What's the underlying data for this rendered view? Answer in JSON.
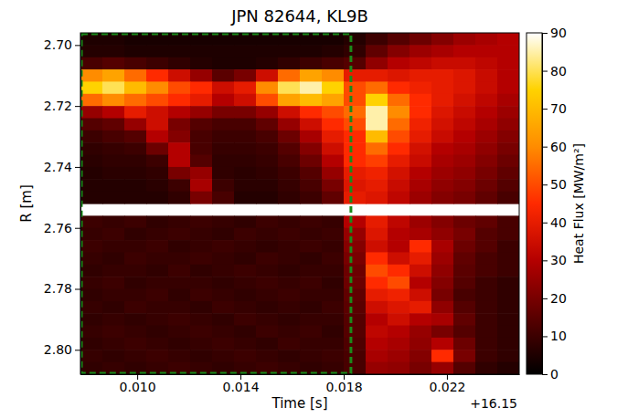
{
  "chart_data": {
    "type": "heatmap",
    "title": "JPN 82644, KL9B",
    "xlabel": "Time [s]",
    "xlabel_offset": "+16.15",
    "ylabel": "R [m]",
    "xlim": [
      0.0078,
      0.0248
    ],
    "ylim": [
      2.696,
      2.808
    ],
    "xticks": [
      {
        "value": 0.01,
        "label": "0.010"
      },
      {
        "value": 0.014,
        "label": "0.014"
      },
      {
        "value": 0.018,
        "label": "0.018"
      },
      {
        "value": 0.022,
        "label": "0.022"
      }
    ],
    "yticks": [
      {
        "value": 2.7,
        "label": "2.70"
      },
      {
        "value": 2.72,
        "label": "2.72"
      },
      {
        "value": 2.74,
        "label": "2.74"
      },
      {
        "value": 2.76,
        "label": "2.76"
      },
      {
        "value": 2.78,
        "label": "2.78"
      },
      {
        "value": 2.8,
        "label": "2.80"
      }
    ],
    "window": [
      0.0078,
      0.01828
    ],
    "x_edges": [
      0.0078,
      0.00865,
      0.0095,
      0.01035,
      0.0112,
      0.01205,
      0.0129,
      0.01375,
      0.0146,
      0.01545,
      0.0163,
      0.01715,
      0.018,
      0.01885,
      0.0197,
      0.02055,
      0.0214,
      0.02225,
      0.0231,
      0.02395,
      0.0248
    ],
    "y_edges": [
      2.696,
      2.7,
      2.704,
      2.708,
      2.712,
      2.716,
      2.72,
      2.724,
      2.728,
      2.732,
      2.736,
      2.74,
      2.744,
      2.748,
      2.752,
      2.756,
      2.76,
      2.764,
      2.768,
      2.772,
      2.776,
      2.78,
      2.784,
      2.788,
      2.792,
      2.796,
      2.8,
      2.804,
      2.808
    ],
    "z": [
      [
        5,
        5,
        4,
        4,
        4,
        4,
        4,
        4,
        4,
        4,
        4,
        4,
        6,
        10,
        14,
        18,
        22,
        26,
        28,
        30
      ],
      [
        6,
        6,
        5,
        5,
        5,
        5,
        5,
        5,
        5,
        5,
        5,
        6,
        8,
        16,
        22,
        26,
        28,
        30,
        30,
        30
      ],
      [
        12,
        14,
        12,
        10,
        8,
        6,
        5,
        5,
        6,
        8,
        10,
        12,
        14,
        24,
        30,
        32,
        34,
        34,
        32,
        30
      ],
      [
        60,
        65,
        55,
        45,
        35,
        25,
        15,
        20,
        35,
        55,
        65,
        60,
        40,
        40,
        38,
        40,
        40,
        38,
        34,
        30
      ],
      [
        75,
        80,
        70,
        60,
        50,
        45,
        35,
        40,
        60,
        80,
        85,
        75,
        50,
        55,
        45,
        42,
        40,
        38,
        34,
        30
      ],
      [
        55,
        60,
        55,
        50,
        45,
        40,
        30,
        35,
        50,
        65,
        70,
        65,
        50,
        75,
        55,
        45,
        40,
        36,
        32,
        28
      ],
      [
        25,
        30,
        40,
        35,
        30,
        25,
        20,
        20,
        25,
        35,
        45,
        50,
        55,
        85,
        60,
        45,
        38,
        34,
        30,
        26
      ],
      [
        14,
        16,
        25,
        35,
        20,
        14,
        12,
        12,
        16,
        25,
        35,
        45,
        50,
        85,
        55,
        42,
        36,
        32,
        28,
        24
      ],
      [
        10,
        12,
        14,
        30,
        22,
        12,
        10,
        10,
        12,
        18,
        28,
        40,
        45,
        70,
        50,
        40,
        34,
        30,
        26,
        22
      ],
      [
        8,
        9,
        10,
        18,
        30,
        12,
        9,
        9,
        10,
        14,
        22,
        35,
        45,
        55,
        45,
        36,
        30,
        28,
        24,
        20
      ],
      [
        7,
        8,
        8,
        10,
        30,
        14,
        8,
        8,
        9,
        12,
        18,
        30,
        45,
        48,
        40,
        34,
        28,
        26,
        22,
        18
      ],
      [
        6,
        7,
        7,
        8,
        20,
        25,
        8,
        7,
        8,
        10,
        14,
        25,
        40,
        42,
        36,
        30,
        26,
        24,
        20,
        16
      ],
      [
        6,
        6,
        6,
        7,
        10,
        28,
        10,
        7,
        7,
        9,
        12,
        20,
        38,
        40,
        34,
        28,
        24,
        22,
        18,
        14
      ],
      [
        6,
        6,
        6,
        6,
        8,
        20,
        12,
        6,
        6,
        8,
        10,
        16,
        40,
        38,
        32,
        26,
        22,
        20,
        16,
        12
      ],
      [
        null,
        null,
        null,
        null,
        null,
        null,
        null,
        null,
        null,
        null,
        null,
        null,
        null,
        null,
        null,
        null,
        null,
        null,
        null,
        null
      ],
      [
        10,
        9,
        10,
        8,
        9,
        10,
        9,
        8,
        10,
        9,
        10,
        9,
        30,
        40,
        32,
        26,
        22,
        18,
        16,
        12
      ],
      [
        9,
        10,
        8,
        9,
        10,
        9,
        8,
        10,
        9,
        10,
        9,
        10,
        25,
        38,
        30,
        28,
        24,
        20,
        14,
        12
      ],
      [
        10,
        9,
        9,
        10,
        8,
        9,
        10,
        9,
        8,
        9,
        10,
        9,
        22,
        35,
        30,
        45,
        28,
        18,
        14,
        10
      ],
      [
        9,
        8,
        10,
        9,
        9,
        10,
        9,
        8,
        10,
        9,
        8,
        10,
        20,
        45,
        35,
        40,
        26,
        16,
        12,
        10
      ],
      [
        8,
        9,
        9,
        8,
        10,
        8,
        9,
        10,
        9,
        8,
        9,
        9,
        18,
        50,
        45,
        35,
        24,
        15,
        12,
        10
      ],
      [
        9,
        10,
        8,
        9,
        9,
        9,
        8,
        9,
        10,
        9,
        10,
        8,
        18,
        45,
        50,
        30,
        22,
        14,
        10,
        8
      ],
      [
        8,
        9,
        9,
        10,
        8,
        10,
        9,
        8,
        9,
        10,
        9,
        9,
        16,
        40,
        42,
        35,
        20,
        12,
        10,
        8
      ],
      [
        9,
        8,
        10,
        9,
        9,
        8,
        10,
        9,
        8,
        9,
        8,
        10,
        15,
        35,
        38,
        40,
        24,
        14,
        10,
        8
      ],
      [
        8,
        9,
        8,
        9,
        10,
        9,
        8,
        10,
        9,
        8,
        9,
        9,
        14,
        30,
        35,
        30,
        28,
        16,
        10,
        8
      ],
      [
        9,
        10,
        9,
        8,
        9,
        10,
        9,
        8,
        10,
        9,
        10,
        8,
        14,
        32,
        30,
        25,
        20,
        14,
        10,
        8
      ],
      [
        8,
        9,
        10,
        9,
        8,
        9,
        10,
        9,
        8,
        10,
        9,
        9,
        13,
        30,
        28,
        24,
        30,
        18,
        10,
        8
      ],
      [
        9,
        8,
        9,
        10,
        9,
        8,
        9,
        10,
        9,
        8,
        9,
        10,
        12,
        28,
        26,
        22,
        45,
        20,
        10,
        8
      ],
      [
        8,
        9,
        8,
        9,
        10,
        9,
        8,
        9,
        10,
        9,
        8,
        9,
        12,
        25,
        24,
        20,
        25,
        14,
        8,
        6
      ]
    ],
    "colorbar": {
      "label": "Heat Flux [MW/m²]",
      "range": [
        0,
        90
      ],
      "ticks": [
        0,
        10,
        20,
        30,
        40,
        50,
        60,
        70,
        80,
        90
      ]
    }
  }
}
